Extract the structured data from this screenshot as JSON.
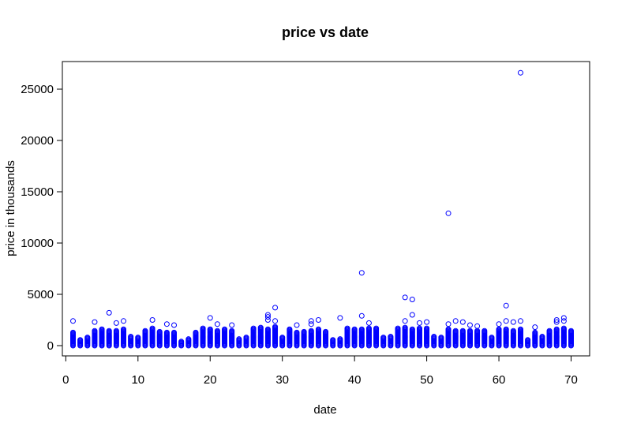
{
  "chart_data": {
    "type": "scatter",
    "title": "price vs date",
    "xlabel": "date",
    "ylabel": "price in thousands",
    "xlim": [
      0,
      71
    ],
    "ylim": [
      -1000,
      27500
    ],
    "xticks": [
      0,
      10,
      20,
      30,
      40,
      50,
      60,
      70
    ],
    "yticks": [
      0,
      5000,
      10000,
      15000,
      20000,
      25000
    ],
    "grid": false,
    "legend": "none",
    "marker": "open-circle",
    "colors": {
      "points": "#0000ff",
      "axes": "#000000"
    },
    "columns": [
      {
        "x": 1,
        "max": 1300,
        "extra": [
          2400
        ]
      },
      {
        "x": 2,
        "max": 600,
        "extra": []
      },
      {
        "x": 3,
        "max": 800,
        "extra": []
      },
      {
        "x": 4,
        "max": 1500,
        "extra": [
          2300
        ]
      },
      {
        "x": 5,
        "max": 1600,
        "extra": []
      },
      {
        "x": 6,
        "max": 1500,
        "extra": [
          3200
        ]
      },
      {
        "x": 7,
        "max": 1500,
        "extra": [
          2200
        ]
      },
      {
        "x": 8,
        "max": 1600,
        "extra": [
          2400
        ]
      },
      {
        "x": 9,
        "max": 900,
        "extra": []
      },
      {
        "x": 10,
        "max": 800,
        "extra": []
      },
      {
        "x": 11,
        "max": 1500,
        "extra": []
      },
      {
        "x": 12,
        "max": 1700,
        "extra": [
          2500
        ]
      },
      {
        "x": 13,
        "max": 1400,
        "extra": []
      },
      {
        "x": 14,
        "max": 1300,
        "extra": [
          2100
        ]
      },
      {
        "x": 15,
        "max": 1300,
        "extra": [
          2000
        ]
      },
      {
        "x": 16,
        "max": 400,
        "extra": []
      },
      {
        "x": 17,
        "max": 700,
        "extra": []
      },
      {
        "x": 18,
        "max": 1300,
        "extra": []
      },
      {
        "x": 19,
        "max": 1700,
        "extra": []
      },
      {
        "x": 20,
        "max": 1600,
        "extra": [
          2700
        ]
      },
      {
        "x": 21,
        "max": 1500,
        "extra": [
          2100
        ]
      },
      {
        "x": 22,
        "max": 1600,
        "extra": []
      },
      {
        "x": 23,
        "max": 1500,
        "extra": [
          2000
        ]
      },
      {
        "x": 24,
        "max": 700,
        "extra": []
      },
      {
        "x": 25,
        "max": 800,
        "extra": []
      },
      {
        "x": 26,
        "max": 1700,
        "extra": []
      },
      {
        "x": 27,
        "max": 1800,
        "extra": []
      },
      {
        "x": 28,
        "max": 1600,
        "extra": [
          2500,
          2800,
          3000
        ]
      },
      {
        "x": 29,
        "max": 1900,
        "extra": [
          2400,
          3700
        ]
      },
      {
        "x": 30,
        "max": 800,
        "extra": []
      },
      {
        "x": 31,
        "max": 1600,
        "extra": []
      },
      {
        "x": 32,
        "max": 1300,
        "extra": [
          2000
        ]
      },
      {
        "x": 33,
        "max": 1400,
        "extra": []
      },
      {
        "x": 34,
        "max": 1500,
        "extra": [
          2100,
          2400
        ]
      },
      {
        "x": 35,
        "max": 1600,
        "extra": [
          2500
        ]
      },
      {
        "x": 36,
        "max": 1400,
        "extra": []
      },
      {
        "x": 37,
        "max": 600,
        "extra": []
      },
      {
        "x": 38,
        "max": 700,
        "extra": [
          2700
        ]
      },
      {
        "x": 39,
        "max": 1700,
        "extra": []
      },
      {
        "x": 40,
        "max": 1600,
        "extra": []
      },
      {
        "x": 41,
        "max": 1600,
        "extra": [
          2900,
          7100
        ]
      },
      {
        "x": 42,
        "max": 1700,
        "extra": [
          2200
        ]
      },
      {
        "x": 43,
        "max": 1700,
        "extra": []
      },
      {
        "x": 44,
        "max": 800,
        "extra": []
      },
      {
        "x": 45,
        "max": 900,
        "extra": []
      },
      {
        "x": 46,
        "max": 1700,
        "extra": []
      },
      {
        "x": 47,
        "max": 1800,
        "extra": [
          2400,
          4700
        ]
      },
      {
        "x": 48,
        "max": 1600,
        "extra": [
          3000,
          4500
        ]
      },
      {
        "x": 49,
        "max": 1700,
        "extra": [
          2200
        ]
      },
      {
        "x": 50,
        "max": 1700,
        "extra": [
          2300
        ]
      },
      {
        "x": 51,
        "max": 900,
        "extra": []
      },
      {
        "x": 52,
        "max": 800,
        "extra": []
      },
      {
        "x": 53,
        "max": 1600,
        "extra": [
          2100,
          12900
        ]
      },
      {
        "x": 54,
        "max": 1500,
        "extra": [
          2400
        ]
      },
      {
        "x": 55,
        "max": 1500,
        "extra": [
          2300
        ]
      },
      {
        "x": 56,
        "max": 1500,
        "extra": [
          2000
        ]
      },
      {
        "x": 57,
        "max": 1500,
        "extra": [
          1900
        ]
      },
      {
        "x": 58,
        "max": 1500,
        "extra": []
      },
      {
        "x": 59,
        "max": 800,
        "extra": []
      },
      {
        "x": 60,
        "max": 1600,
        "extra": [
          2100
        ]
      },
      {
        "x": 61,
        "max": 1600,
        "extra": [
          2400,
          3900
        ]
      },
      {
        "x": 62,
        "max": 1500,
        "extra": [
          2300
        ]
      },
      {
        "x": 63,
        "max": 1600,
        "extra": [
          2400,
          26600
        ]
      },
      {
        "x": 64,
        "max": 600,
        "extra": []
      },
      {
        "x": 65,
        "max": 1300,
        "extra": [
          1800
        ]
      },
      {
        "x": 66,
        "max": 900,
        "extra": []
      },
      {
        "x": 67,
        "max": 1500,
        "extra": []
      },
      {
        "x": 68,
        "max": 1600,
        "extra": [
          2300,
          2500
        ]
      },
      {
        "x": 69,
        "max": 1700,
        "extra": [
          2400,
          2700
        ]
      },
      {
        "x": 70,
        "max": 1500,
        "extra": []
      }
    ]
  }
}
